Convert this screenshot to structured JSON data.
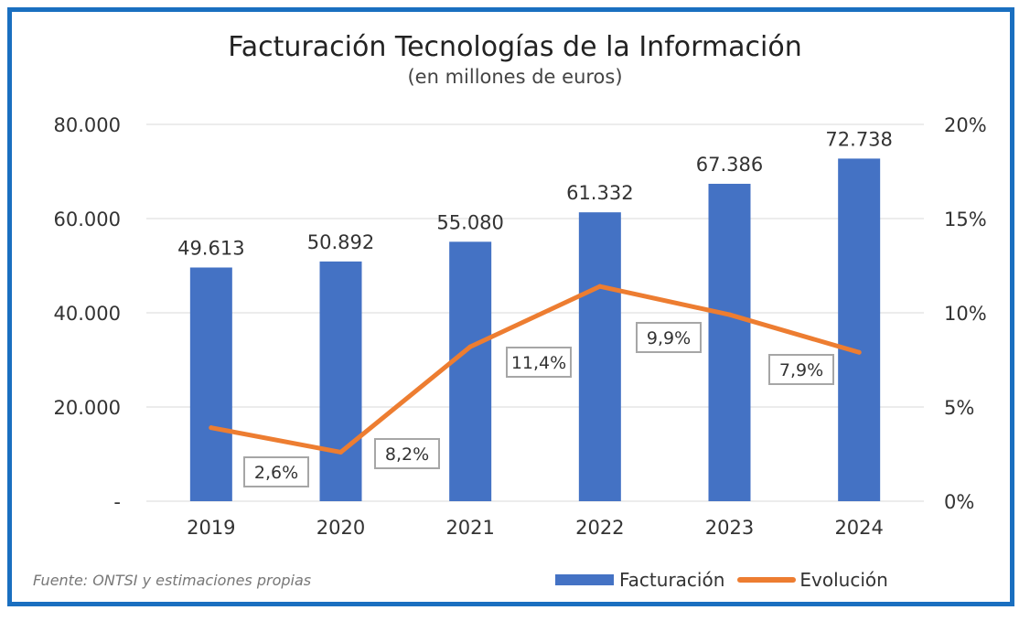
{
  "chart_data": {
    "type": "bar",
    "title": "Facturación Tecnologías de la Información",
    "subtitle": "(en millones de euros)",
    "categories": [
      "2019",
      "2020",
      "2021",
      "2022",
      "2023",
      "2024"
    ],
    "series": [
      {
        "name": "Facturación",
        "type": "bar",
        "axis": "left",
        "values": [
          49613,
          50892,
          55080,
          61332,
          67386,
          72738
        ],
        "labels": [
          "49.613",
          "50.892",
          "55.080",
          "61.332",
          "67.386",
          "72.738"
        ],
        "color": "#4472c4"
      },
      {
        "name": "Evolución",
        "type": "line",
        "axis": "right",
        "values": [
          3.9,
          2.6,
          8.2,
          11.4,
          9.9,
          7.9
        ],
        "labels": [
          "",
          "2,6%",
          "8,2%",
          "11,4%",
          "9,9%",
          "7,9%"
        ],
        "color": "#ed7d31"
      }
    ],
    "y_left": {
      "ylim": [
        0,
        80000
      ],
      "ticks": [
        0,
        20000,
        40000,
        60000,
        80000
      ],
      "tick_labels": [
        "-",
        "20.000",
        "40.000",
        "60.000",
        "80.000"
      ]
    },
    "y_right": {
      "ylim": [
        0,
        20
      ],
      "ticks": [
        0,
        5,
        10,
        15,
        20
      ],
      "tick_labels": [
        "0%",
        "5%",
        "10%",
        "15%",
        "20%"
      ]
    },
    "grid": true,
    "legend_position": "bottom-right"
  },
  "source_note": "Fuente: ONTSI y estimaciones propias",
  "colors": {
    "frame": "#1a6fc0",
    "grid": "#d9d9d9"
  }
}
